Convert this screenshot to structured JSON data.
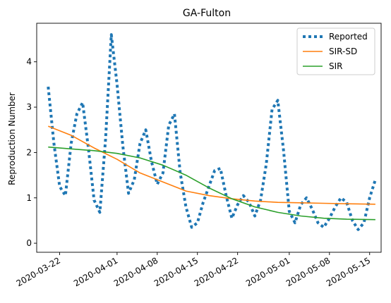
{
  "chart_data": {
    "type": "line",
    "title": "GA-Fulton",
    "xlabel": "",
    "ylabel": "Reproduction Number",
    "x_ticks": [
      "2020-03-22",
      "2020-04-01",
      "2020-04-08",
      "2020-04-15",
      "2020-04-22",
      "2020-05-01",
      "2020-05-08",
      "2020-05-15"
    ],
    "y_ticks": [
      "0",
      "1",
      "2",
      "3",
      "4"
    ],
    "xlim": [
      "2020-03-18",
      "2020-05-17"
    ],
    "ylim": [
      -0.2,
      4.85
    ],
    "grid": false,
    "legend_position": "top-right",
    "series": [
      {
        "name": "Reported",
        "style": "dotted",
        "color": "#1f77b4",
        "points": [
          [
            "2020-03-20",
            3.45
          ],
          [
            "2020-03-21",
            2.2
          ],
          [
            "2020-03-22",
            1.25
          ],
          [
            "2020-03-23",
            1.05
          ],
          [
            "2020-03-24",
            2.2
          ],
          [
            "2020-03-25",
            2.85
          ],
          [
            "2020-03-26",
            3.1
          ],
          [
            "2020-03-27",
            2.1
          ],
          [
            "2020-03-28",
            0.95
          ],
          [
            "2020-03-29",
            0.68
          ],
          [
            "2020-03-30",
            2.3
          ],
          [
            "2020-03-31",
            4.6
          ],
          [
            "2020-04-01",
            3.5
          ],
          [
            "2020-04-02",
            2.15
          ],
          [
            "2020-04-03",
            1.1
          ],
          [
            "2020-04-04",
            1.4
          ],
          [
            "2020-04-05",
            2.2
          ],
          [
            "2020-04-06",
            2.5
          ],
          [
            "2020-04-07",
            1.8
          ],
          [
            "2020-04-08",
            1.3
          ],
          [
            "2020-04-09",
            1.55
          ],
          [
            "2020-04-10",
            2.6
          ],
          [
            "2020-04-11",
            2.85
          ],
          [
            "2020-04-12",
            1.55
          ],
          [
            "2020-04-13",
            0.8
          ],
          [
            "2020-04-14",
            0.35
          ],
          [
            "2020-04-15",
            0.45
          ],
          [
            "2020-04-16",
            0.9
          ],
          [
            "2020-04-17",
            1.25
          ],
          [
            "2020-04-18",
            1.6
          ],
          [
            "2020-04-19",
            1.65
          ],
          [
            "2020-04-20",
            1.05
          ],
          [
            "2020-04-21",
            0.55
          ],
          [
            "2020-04-22",
            0.85
          ],
          [
            "2020-04-23",
            1.05
          ],
          [
            "2020-04-24",
            0.9
          ],
          [
            "2020-04-25",
            0.6
          ],
          [
            "2020-04-26",
            0.95
          ],
          [
            "2020-04-27",
            1.75
          ],
          [
            "2020-04-28",
            2.95
          ],
          [
            "2020-04-29",
            3.15
          ],
          [
            "2020-04-30",
            2.05
          ],
          [
            "2020-05-01",
            0.7
          ],
          [
            "2020-05-02",
            0.45
          ],
          [
            "2020-05-03",
            0.85
          ],
          [
            "2020-05-04",
            1.0
          ],
          [
            "2020-05-05",
            0.75
          ],
          [
            "2020-05-06",
            0.45
          ],
          [
            "2020-05-07",
            0.35
          ],
          [
            "2020-05-08",
            0.55
          ],
          [
            "2020-05-09",
            0.8
          ],
          [
            "2020-05-10",
            1.0
          ],
          [
            "2020-05-11",
            0.9
          ],
          [
            "2020-05-12",
            0.5
          ],
          [
            "2020-05-13",
            0.3
          ],
          [
            "2020-05-14",
            0.45
          ],
          [
            "2020-05-15",
            1.0
          ],
          [
            "2020-05-16",
            1.4
          ]
        ]
      },
      {
        "name": "SIR-SD",
        "style": "solid",
        "color": "#ff7f0e",
        "points": [
          [
            "2020-03-20",
            2.58
          ],
          [
            "2020-03-24",
            2.38
          ],
          [
            "2020-03-28",
            2.1
          ],
          [
            "2020-04-01",
            1.85
          ],
          [
            "2020-04-05",
            1.55
          ],
          [
            "2020-04-09",
            1.35
          ],
          [
            "2020-04-13",
            1.15
          ],
          [
            "2020-04-17",
            1.05
          ],
          [
            "2020-04-21",
            0.98
          ],
          [
            "2020-04-25",
            0.93
          ],
          [
            "2020-04-29",
            0.9
          ],
          [
            "2020-05-03",
            0.89
          ],
          [
            "2020-05-07",
            0.88
          ],
          [
            "2020-05-11",
            0.87
          ],
          [
            "2020-05-16",
            0.86
          ]
        ]
      },
      {
        "name": "SIR",
        "style": "solid",
        "color": "#2ca02c",
        "points": [
          [
            "2020-03-20",
            2.12
          ],
          [
            "2020-03-24",
            2.08
          ],
          [
            "2020-03-28",
            2.04
          ],
          [
            "2020-04-01",
            1.98
          ],
          [
            "2020-04-05",
            1.88
          ],
          [
            "2020-04-09",
            1.72
          ],
          [
            "2020-04-13",
            1.5
          ],
          [
            "2020-04-17",
            1.22
          ],
          [
            "2020-04-21",
            0.98
          ],
          [
            "2020-04-25",
            0.8
          ],
          [
            "2020-04-29",
            0.68
          ],
          [
            "2020-05-03",
            0.6
          ],
          [
            "2020-05-07",
            0.55
          ],
          [
            "2020-05-11",
            0.53
          ],
          [
            "2020-05-16",
            0.52
          ]
        ]
      }
    ]
  }
}
